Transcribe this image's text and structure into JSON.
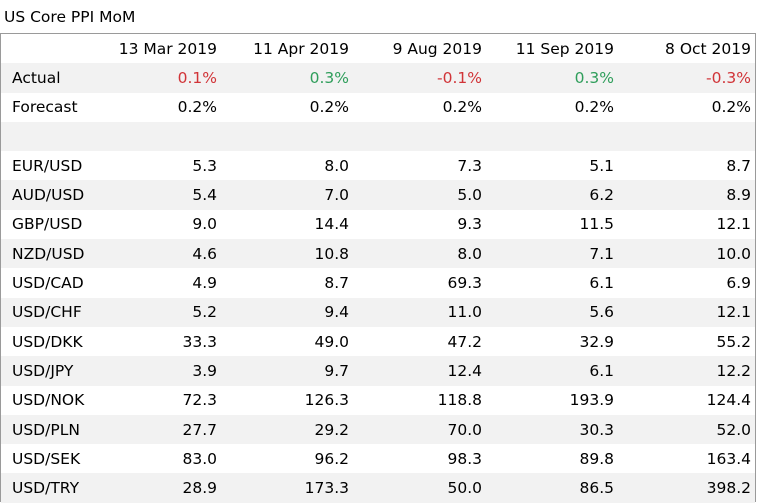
{
  "title": "US Core PPI MoM",
  "columns": [
    "13 Mar 2019",
    "11 Apr 2019",
    "9 Aug 2019",
    "11 Sep 2019",
    "8 Oct 2019"
  ],
  "actual": {
    "label": "Actual",
    "values": [
      "0.1%",
      "0.3%",
      "-0.1%",
      "0.3%",
      "-0.3%"
    ],
    "status": [
      "neg",
      "pos",
      "neg",
      "pos",
      "neg"
    ]
  },
  "forecast": {
    "label": "Forecast",
    "values": [
      "0.2%",
      "0.2%",
      "0.2%",
      "0.2%",
      "0.2%"
    ]
  },
  "pairs": [
    {
      "label": "EUR/USD",
      "values": [
        "5.3",
        "8.0",
        "7.3",
        "5.1",
        "8.7"
      ]
    },
    {
      "label": "AUD/USD",
      "values": [
        "5.4",
        "7.0",
        "5.0",
        "6.2",
        "8.9"
      ]
    },
    {
      "label": "GBP/USD",
      "values": [
        "9.0",
        "14.4",
        "9.3",
        "11.5",
        "12.1"
      ]
    },
    {
      "label": "NZD/USD",
      "values": [
        "4.6",
        "10.8",
        "8.0",
        "7.1",
        "10.0"
      ]
    },
    {
      "label": "USD/CAD",
      "values": [
        "4.9",
        "8.7",
        "69.3",
        "6.1",
        "6.9"
      ]
    },
    {
      "label": "USD/CHF",
      "values": [
        "5.2",
        "9.4",
        "11.0",
        "5.6",
        "12.1"
      ]
    },
    {
      "label": "USD/DKK",
      "values": [
        "33.3",
        "49.0",
        "47.2",
        "32.9",
        "55.2"
      ]
    },
    {
      "label": "USD/JPY",
      "values": [
        "3.9",
        "9.7",
        "12.4",
        "6.1",
        "12.2"
      ]
    },
    {
      "label": "USD/NOK",
      "values": [
        "72.3",
        "126.3",
        "118.8",
        "193.9",
        "124.4"
      ]
    },
    {
      "label": "USD/PLN",
      "values": [
        "27.7",
        "29.2",
        "70.0",
        "30.3",
        "52.0"
      ]
    },
    {
      "label": "USD/SEK",
      "values": [
        "83.0",
        "96.2",
        "98.3",
        "89.8",
        "163.4"
      ]
    },
    {
      "label": "USD/TRY",
      "values": [
        "28.9",
        "173.3",
        "50.0",
        "86.5",
        "398.2"
      ]
    }
  ],
  "colors": {
    "negative": "#d13438",
    "positive": "#2f9e5b",
    "row_shade": "#f2f2f2",
    "border": "#9a9a9a"
  }
}
